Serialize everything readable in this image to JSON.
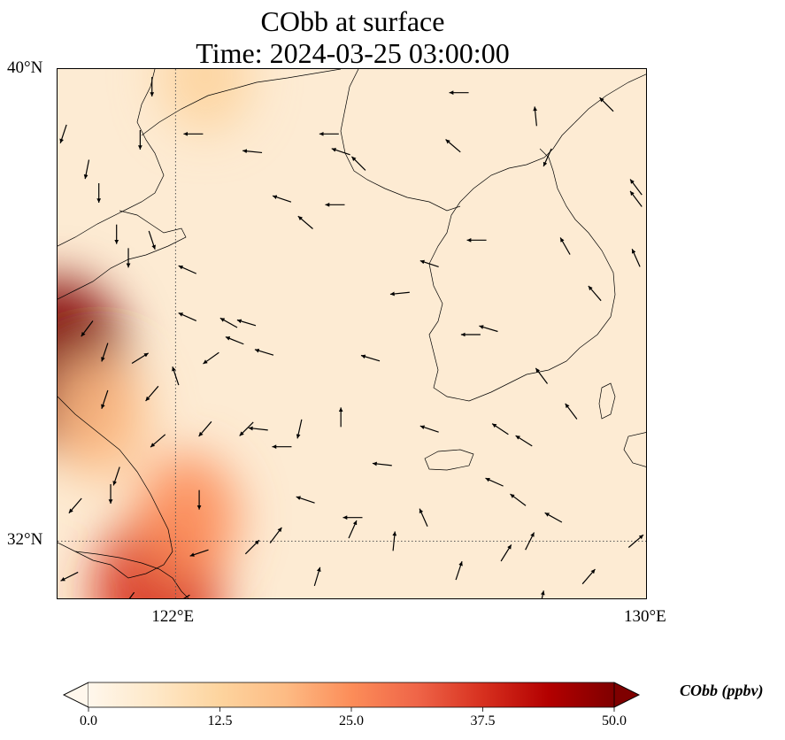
{
  "title": {
    "line1": "CObb at surface",
    "line2": "Time: 2024-03-25 03:00:00"
  },
  "map": {
    "lon_range": [
      120,
      130
    ],
    "lat_range": [
      31,
      40
    ],
    "gridlines": {
      "lons": [
        122
      ],
      "lats": [
        32
      ],
      "style": "dotted"
    },
    "lon_tick_labels": [
      {
        "lon": 122,
        "label": "122°E"
      },
      {
        "lon": 130,
        "label": "130°E"
      }
    ],
    "lat_tick_labels": [
      {
        "lat": 40,
        "label": "40°N"
      },
      {
        "lat": 32,
        "label": "32°N"
      }
    ]
  },
  "colorbar": {
    "label": "CObb (ppbv)",
    "min": 0.0,
    "max": 50.0,
    "ticks": [
      "0.0",
      "12.5",
      "25.0",
      "37.5",
      "50.0"
    ],
    "colormap": "OrRd",
    "extend": "both",
    "colors": [
      "#fff7ec",
      "#fee8c8",
      "#fdd49e",
      "#fdbb84",
      "#fc8d59",
      "#ef6548",
      "#d7301f",
      "#b30000",
      "#7f0000"
    ]
  },
  "field": {
    "units": "ppbv",
    "hotspots": [
      {
        "lon": 120.0,
        "lat": 35.0,
        "value": 48
      },
      {
        "lon": 121.7,
        "lat": 31.1,
        "value": 40
      },
      {
        "lon": 122.2,
        "lat": 32.4,
        "value": 22
      },
      {
        "lon": 122.5,
        "lat": 39.9,
        "value": 15
      },
      {
        "lon": 120.7,
        "lat": 34.1,
        "value": 20
      }
    ]
  },
  "wind_vectors": [
    {
      "lon": 121.6,
      "lat": 39.7,
      "u": 0.0,
      "v": -1.0
    },
    {
      "lon": 120.1,
      "lat": 38.9,
      "u": -0.3,
      "v": -0.9
    },
    {
      "lon": 120.5,
      "lat": 38.3,
      "u": -0.2,
      "v": -1.0
    },
    {
      "lon": 120.7,
      "lat": 37.9,
      "u": 0.0,
      "v": -1.0
    },
    {
      "lon": 121.6,
      "lat": 37.1,
      "u": 0.3,
      "v": -0.9
    },
    {
      "lon": 121.0,
      "lat": 37.2,
      "u": 0.0,
      "v": -1.0
    },
    {
      "lon": 121.2,
      "lat": 36.8,
      "u": 0.0,
      "v": -1.0
    },
    {
      "lon": 121.4,
      "lat": 38.8,
      "u": 0.0,
      "v": -1.0
    },
    {
      "lon": 122.3,
      "lat": 38.9,
      "u": -1.0,
      "v": 0.0
    },
    {
      "lon": 123.3,
      "lat": 38.6,
      "u": -1.0,
      "v": 0.1
    },
    {
      "lon": 124.6,
      "lat": 38.9,
      "u": -1.0,
      "v": 0.0
    },
    {
      "lon": 124.8,
      "lat": 38.6,
      "u": -0.9,
      "v": 0.3
    },
    {
      "lon": 125.1,
      "lat": 38.4,
      "u": -0.7,
      "v": 0.7
    },
    {
      "lon": 126.8,
      "lat": 39.6,
      "u": -1.0,
      "v": 0.0
    },
    {
      "lon": 126.7,
      "lat": 38.7,
      "u": -0.7,
      "v": 0.6
    },
    {
      "lon": 128.1,
      "lat": 39.2,
      "u": -0.1,
      "v": 1.0
    },
    {
      "lon": 128.3,
      "lat": 38.5,
      "u": -0.4,
      "v": -0.9
    },
    {
      "lon": 129.3,
      "lat": 39.4,
      "u": -0.7,
      "v": 0.7
    },
    {
      "lon": 129.8,
      "lat": 38.0,
      "u": -0.6,
      "v": 0.8
    },
    {
      "lon": 129.8,
      "lat": 37.8,
      "u": -0.6,
      "v": 0.8
    },
    {
      "lon": 123.8,
      "lat": 37.8,
      "u": -0.9,
      "v": 0.3
    },
    {
      "lon": 124.2,
      "lat": 37.4,
      "u": -0.7,
      "v": 0.6
    },
    {
      "lon": 124.7,
      "lat": 37.7,
      "u": -1.0,
      "v": 0.0
    },
    {
      "lon": 126.3,
      "lat": 36.7,
      "u": -0.9,
      "v": 0.3
    },
    {
      "lon": 127.1,
      "lat": 37.1,
      "u": -0.9,
      "v": 0.0
    },
    {
      "lon": 128.6,
      "lat": 37.0,
      "u": -0.4,
      "v": 0.7
    },
    {
      "lon": 129.1,
      "lat": 36.2,
      "u": -0.6,
      "v": 0.7
    },
    {
      "lon": 129.8,
      "lat": 36.8,
      "u": -0.4,
      "v": 0.9
    },
    {
      "lon": 122.2,
      "lat": 36.6,
      "u": -0.9,
      "v": 0.4
    },
    {
      "lon": 122.9,
      "lat": 35.7,
      "u": -0.9,
      "v": 0.5
    },
    {
      "lon": 123.2,
      "lat": 35.7,
      "u": -1.0,
      "v": 0.3
    },
    {
      "lon": 122.2,
      "lat": 35.8,
      "u": -0.9,
      "v": 0.4
    },
    {
      "lon": 123.0,
      "lat": 35.4,
      "u": -1.0,
      "v": 0.4
    },
    {
      "lon": 123.5,
      "lat": 35.2,
      "u": -1.0,
      "v": 0.3
    },
    {
      "lon": 125.3,
      "lat": 35.1,
      "u": -1.0,
      "v": 0.3
    },
    {
      "lon": 125.8,
      "lat": 36.2,
      "u": -1.0,
      "v": -0.1
    },
    {
      "lon": 127.0,
      "lat": 35.5,
      "u": -1.0,
      "v": 0.0
    },
    {
      "lon": 127.3,
      "lat": 35.6,
      "u": -1.0,
      "v": 0.3
    },
    {
      "lon": 128.2,
      "lat": 34.8,
      "u": -0.6,
      "v": 0.8
    },
    {
      "lon": 128.7,
      "lat": 34.2,
      "u": -0.6,
      "v": 0.8
    },
    {
      "lon": 127.5,
      "lat": 33.9,
      "u": -0.6,
      "v": 0.4
    },
    {
      "lon": 127.9,
      "lat": 33.7,
      "u": -0.8,
      "v": 0.5
    },
    {
      "lon": 127.4,
      "lat": 33.0,
      "u": -0.9,
      "v": 0.4
    },
    {
      "lon": 127.8,
      "lat": 32.7,
      "u": -0.8,
      "v": 0.6
    },
    {
      "lon": 128.4,
      "lat": 32.4,
      "u": -0.9,
      "v": 0.5
    },
    {
      "lon": 126.3,
      "lat": 33.9,
      "u": -0.9,
      "v": 0.3
    },
    {
      "lon": 125.5,
      "lat": 33.3,
      "u": -0.9,
      "v": 0.1
    },
    {
      "lon": 125.0,
      "lat": 32.4,
      "u": -0.9,
      "v": 0.0
    },
    {
      "lon": 124.2,
      "lat": 32.7,
      "u": -0.9,
      "v": 0.3
    },
    {
      "lon": 123.8,
      "lat": 33.6,
      "u": -0.9,
      "v": 0.0
    },
    {
      "lon": 123.4,
      "lat": 33.9,
      "u": -0.9,
      "v": 0.1
    },
    {
      "lon": 122.5,
      "lat": 33.9,
      "u": -0.6,
      "v": -0.7
    },
    {
      "lon": 123.2,
      "lat": 33.9,
      "u": -0.6,
      "v": -0.6
    },
    {
      "lon": 124.1,
      "lat": 33.9,
      "u": -0.2,
      "v": -0.9
    },
    {
      "lon": 124.8,
      "lat": 34.1,
      "u": 0.0,
      "v": 1.0
    },
    {
      "lon": 122.6,
      "lat": 35.1,
      "u": -0.7,
      "v": -0.5
    },
    {
      "lon": 122.0,
      "lat": 34.8,
      "u": -0.3,
      "v": 0.9
    },
    {
      "lon": 121.4,
      "lat": 35.1,
      "u": 0.8,
      "v": 0.5
    },
    {
      "lon": 121.6,
      "lat": 34.5,
      "u": -0.6,
      "v": -0.7
    },
    {
      "lon": 120.8,
      "lat": 34.4,
      "u": -0.3,
      "v": -0.9
    },
    {
      "lon": 120.5,
      "lat": 35.6,
      "u": -0.6,
      "v": -0.8
    },
    {
      "lon": 120.8,
      "lat": 35.2,
      "u": -0.3,
      "v": -0.9
    },
    {
      "lon": 121.7,
      "lat": 33.7,
      "u": -0.7,
      "v": -0.6
    },
    {
      "lon": 121.0,
      "lat": 33.1,
      "u": -0.3,
      "v": -0.9
    },
    {
      "lon": 120.9,
      "lat": 32.8,
      "u": 0.0,
      "v": -1.0
    },
    {
      "lon": 120.3,
      "lat": 32.6,
      "u": -0.6,
      "v": -0.7
    },
    {
      "lon": 120.2,
      "lat": 31.4,
      "u": -0.8,
      "v": -0.4
    },
    {
      "lon": 121.2,
      "lat": 31.0,
      "u": -0.6,
      "v": -0.8
    },
    {
      "lon": 122.1,
      "lat": 31.0,
      "u": -0.8,
      "v": -0.5
    },
    {
      "lon": 122.4,
      "lat": 31.8,
      "u": -0.9,
      "v": -0.3
    },
    {
      "lon": 122.4,
      "lat": 32.7,
      "u": 0.0,
      "v": -1.0
    },
    {
      "lon": 123.3,
      "lat": 31.9,
      "u": 0.7,
      "v": 0.7
    },
    {
      "lon": 123.7,
      "lat": 32.1,
      "u": 0.6,
      "v": 0.8
    },
    {
      "lon": 124.4,
      "lat": 31.4,
      "u": 0.3,
      "v": 1.0
    },
    {
      "lon": 125.0,
      "lat": 32.2,
      "u": 0.4,
      "v": 0.9
    },
    {
      "lon": 125.7,
      "lat": 32.0,
      "u": 0.1,
      "v": 1.0
    },
    {
      "lon": 126.2,
      "lat": 32.4,
      "u": -0.4,
      "v": 0.9
    },
    {
      "lon": 126.8,
      "lat": 31.5,
      "u": 0.3,
      "v": 0.9
    },
    {
      "lon": 127.6,
      "lat": 31.8,
      "u": 0.5,
      "v": 0.8
    },
    {
      "lon": 128.0,
      "lat": 32.0,
      "u": 0.4,
      "v": 0.8
    },
    {
      "lon": 129.0,
      "lat": 31.4,
      "u": 0.6,
      "v": 0.7
    },
    {
      "lon": 129.8,
      "lat": 32.0,
      "u": 0.7,
      "v": 0.6
    },
    {
      "lon": 128.2,
      "lat": 31.0,
      "u": 0.2,
      "v": 0.9
    }
  ]
}
